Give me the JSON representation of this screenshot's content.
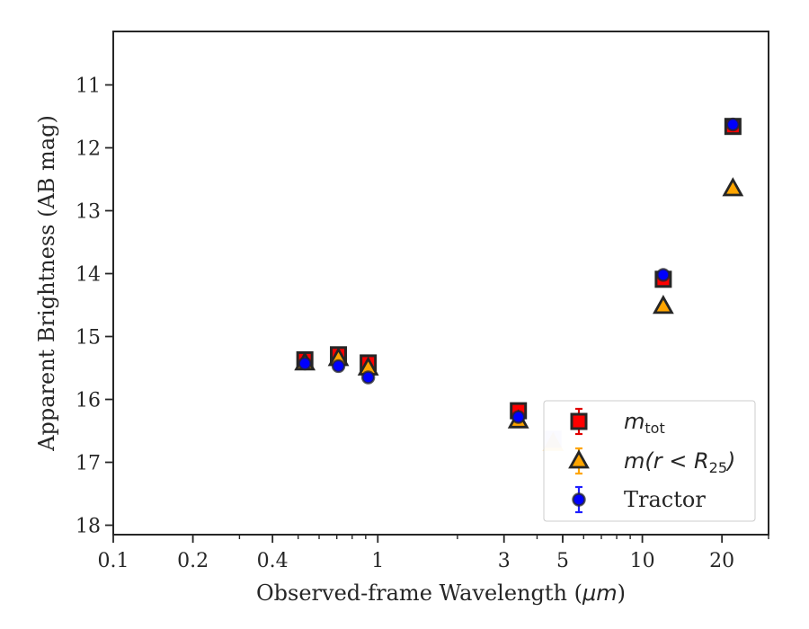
{
  "chart_data": {
    "type": "scatter",
    "xlabel": "Observed-frame Wavelength (",
    "xlabel_unit": "μm",
    "xlabel_close": ")",
    "ylabel": "Apparent Brightness (AB mag)",
    "x_scale": "log",
    "xlim": [
      0.1,
      30
    ],
    "ylim": [
      18.15,
      10.15
    ],
    "y_inverted": true,
    "x_ticks": [
      {
        "value": 0.1,
        "label": "0.1"
      },
      {
        "value": 0.2,
        "label": "0.2"
      },
      {
        "value": 0.4,
        "label": "0.4"
      },
      {
        "value": 1,
        "label": "1"
      },
      {
        "value": 3,
        "label": "3"
      },
      {
        "value": 5,
        "label": "5"
      },
      {
        "value": 10,
        "label": "10"
      },
      {
        "value": 20,
        "label": "20"
      }
    ],
    "y_ticks": [
      11,
      12,
      13,
      14,
      15,
      16,
      17,
      18
    ],
    "y_tick_labels": [
      "11",
      "12",
      "13",
      "14",
      "15",
      "16",
      "17",
      "18"
    ],
    "grid": false,
    "legend_position": "lower-right",
    "series": [
      {
        "name": "m_tot",
        "legend_label": {
          "main": "m",
          "sub": "tot"
        },
        "marker": "square",
        "fill": "#ff0000",
        "edge": "#262626",
        "errorbar": "#e00000",
        "x": [
          0.53,
          0.71,
          0.92,
          3.4,
          12.0,
          22.0
        ],
        "y": [
          15.37,
          15.29,
          15.42,
          16.18,
          14.09,
          11.66
        ],
        "yerr": [
          0.06,
          0.06,
          0.06,
          0.06,
          0.08,
          0.05
        ]
      },
      {
        "name": "m(r < R25)",
        "legend_label": {
          "main": "m(r < R",
          "sub": "25",
          "close": ")"
        },
        "marker": "triangle",
        "fill": "#ffa500",
        "edge": "#262626",
        "errorbar": "#ffa500",
        "x": [
          0.53,
          0.71,
          0.92,
          3.4,
          12.0,
          22.0
        ],
        "y": [
          15.42,
          15.35,
          15.5,
          16.34,
          14.52,
          12.65
        ],
        "yerr": [
          0.04,
          0.04,
          0.04,
          0.04,
          0.04,
          0.04
        ]
      },
      {
        "name": "Tractor",
        "legend_label": {
          "main": "Tractor"
        },
        "marker": "circle",
        "fill": "#0000ff",
        "edge": "#262626",
        "errorbar": "#1f1fff",
        "x": [
          0.53,
          0.71,
          0.92,
          3.4,
          12.0,
          22.0
        ],
        "y": [
          15.43,
          15.47,
          15.65,
          16.28,
          14.02,
          11.63
        ],
        "yerr": [
          0.05,
          0.05,
          0.06,
          0.05,
          0.06,
          0.05
        ]
      }
    ],
    "faded_points": [
      {
        "series": "m(r < R25)",
        "x": 4.6,
        "y": 16.7,
        "fill": "#ffa500"
      },
      {
        "series": "m_tot",
        "x": 4.6,
        "y": 16.63,
        "fill": "#9999ff"
      }
    ]
  }
}
